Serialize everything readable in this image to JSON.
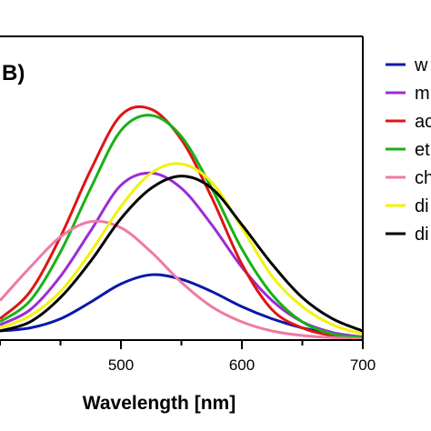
{
  "chart_data": {
    "type": "line",
    "panel_label": "B)",
    "xlabel": "Wavelength [nm]",
    "ylabel": "",
    "xlim": [
      400,
      700
    ],
    "ylim": [
      0,
      1.0
    ],
    "x_ticks": [
      500,
      600,
      700
    ],
    "grid": false,
    "legend_position": "right",
    "x": [
      400,
      425,
      450,
      475,
      500,
      525,
      550,
      575,
      600,
      625,
      650,
      675,
      700
    ],
    "series": [
      {
        "name": "w",
        "color": "#0a18a8",
        "values": [
          0.03,
          0.04,
          0.07,
          0.125,
          0.185,
          0.215,
          0.2,
          0.16,
          0.11,
          0.07,
          0.04,
          0.02,
          0.01
        ]
      },
      {
        "name": "m",
        "color": "#9b2bd6",
        "values": [
          0.05,
          0.1,
          0.21,
          0.36,
          0.51,
          0.55,
          0.5,
          0.38,
          0.24,
          0.13,
          0.06,
          0.025,
          0.01
        ]
      },
      {
        "name": "ac",
        "color": "#e01414",
        "values": [
          0.07,
          0.16,
          0.34,
          0.56,
          0.74,
          0.76,
          0.66,
          0.47,
          0.25,
          0.1,
          0.04,
          0.015,
          0.005
        ]
      },
      {
        "name": "et",
        "color": "#19b019",
        "values": [
          0.06,
          0.13,
          0.29,
          0.5,
          0.69,
          0.74,
          0.67,
          0.5,
          0.3,
          0.15,
          0.06,
          0.02,
          0.008
        ]
      },
      {
        "name": "ch",
        "color": "#ee7aa6",
        "values": [
          0.13,
          0.24,
          0.34,
          0.39,
          0.37,
          0.29,
          0.19,
          0.11,
          0.06,
          0.03,
          0.015,
          0.008,
          0.004
        ]
      },
      {
        "name": "di",
        "color": "#f2f20a",
        "values": [
          0.04,
          0.08,
          0.16,
          0.29,
          0.44,
          0.55,
          0.58,
          0.52,
          0.37,
          0.21,
          0.11,
          0.05,
          0.02
        ]
      },
      {
        "name": "di",
        "color": "#000000",
        "values": [
          0.03,
          0.06,
          0.14,
          0.26,
          0.4,
          0.5,
          0.54,
          0.5,
          0.38,
          0.25,
          0.14,
          0.07,
          0.03
        ]
      }
    ]
  }
}
